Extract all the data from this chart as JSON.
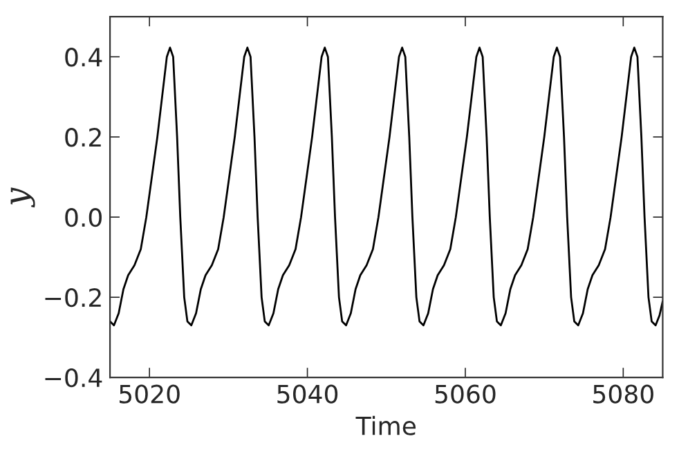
{
  "chart_data": {
    "type": "line",
    "xlabel": "Time",
    "ylabel": "y",
    "xlim": [
      5015,
      5085
    ],
    "ylim": [
      -0.4,
      0.5
    ],
    "xticks": [
      5020,
      5040,
      5060,
      5080
    ],
    "yticks": [
      {
        "value": -0.4,
        "label": "−0.4"
      },
      {
        "value": -0.2,
        "label": "−0.2"
      },
      {
        "value": 0,
        "label": "0.0"
      },
      0.2,
      0.4
    ],
    "grid": false,
    "marker": "none",
    "line_style": "solid",
    "series": [
      {
        "color": "#000000",
        "x": [
          5015.0,
          5015.5,
          5016.1,
          5016.7,
          5017.3,
          5018.1,
          5018.9,
          5019.6,
          5020.3,
          5021.0,
          5021.6,
          5022.2,
          5022.6,
          5023.0,
          5023.5,
          5023.9,
          5024.4,
          5024.8,
          5025.3,
          5025.9,
          5026.5,
          5027.1,
          5027.9,
          5028.7,
          5029.4,
          5030.1,
          5030.8,
          5031.4,
          5032.0,
          5032.4,
          5032.8,
          5033.3,
          5033.7,
          5034.2,
          5034.6,
          5035.1,
          5035.7,
          5036.3,
          5036.9,
          5037.7,
          5038.5,
          5039.2,
          5039.9,
          5040.6,
          5041.2,
          5041.8,
          5042.2,
          5042.6,
          5043.1,
          5043.5,
          5044.0,
          5044.4,
          5044.9,
          5045.5,
          5046.1,
          5046.7,
          5047.5,
          5048.3,
          5049.0,
          5049.7,
          5050.4,
          5051.0,
          5051.6,
          5052.0,
          5052.4,
          5052.9,
          5053.3,
          5053.8,
          5054.2,
          5054.7,
          5055.3,
          5055.9,
          5056.5,
          5057.3,
          5058.1,
          5058.8,
          5059.5,
          5060.2,
          5060.8,
          5061.4,
          5061.8,
          5062.2,
          5062.7,
          5063.1,
          5063.6,
          5064.0,
          5064.5,
          5065.1,
          5065.7,
          5066.3,
          5067.1,
          5067.9,
          5068.6,
          5069.3,
          5070.0,
          5070.6,
          5071.2,
          5071.6,
          5072.0,
          5072.5,
          5072.9,
          5073.4,
          5073.8,
          5074.3,
          5074.9,
          5075.5,
          5076.1,
          5076.9,
          5077.7,
          5078.4,
          5079.1,
          5079.8,
          5080.4,
          5081.0,
          5081.4,
          5081.8,
          5082.3,
          5082.7,
          5083.2,
          5083.6,
          5084.1,
          5084.6,
          5085.0
        ],
        "values": [
          -0.26,
          -0.27,
          -0.24,
          -0.18,
          -0.145,
          -0.12,
          -0.08,
          0.0,
          0.1,
          0.2,
          0.3,
          0.4,
          0.423,
          0.4,
          0.2,
          0.0,
          -0.2,
          -0.26,
          -0.27,
          -0.24,
          -0.18,
          -0.145,
          -0.12,
          -0.08,
          0.0,
          0.1,
          0.2,
          0.3,
          0.4,
          0.423,
          0.4,
          0.2,
          0.0,
          -0.2,
          -0.26,
          -0.27,
          -0.24,
          -0.18,
          -0.145,
          -0.12,
          -0.08,
          0.0,
          0.1,
          0.2,
          0.3,
          0.4,
          0.423,
          0.4,
          0.2,
          0.0,
          -0.2,
          -0.26,
          -0.27,
          -0.24,
          -0.18,
          -0.145,
          -0.12,
          -0.08,
          0.0,
          0.1,
          0.2,
          0.3,
          0.4,
          0.423,
          0.4,
          0.2,
          0.0,
          -0.2,
          -0.26,
          -0.27,
          -0.24,
          -0.18,
          -0.145,
          -0.12,
          -0.08,
          0.0,
          0.1,
          0.2,
          0.3,
          0.4,
          0.423,
          0.4,
          0.2,
          0.0,
          -0.2,
          -0.26,
          -0.27,
          -0.24,
          -0.18,
          -0.145,
          -0.12,
          -0.08,
          0.0,
          0.1,
          0.2,
          0.3,
          0.4,
          0.423,
          0.4,
          0.2,
          0.0,
          -0.2,
          -0.26,
          -0.27,
          -0.24,
          -0.18,
          -0.145,
          -0.12,
          -0.08,
          0.0,
          0.1,
          0.2,
          0.3,
          0.4,
          0.423,
          0.4,
          0.2,
          0.0,
          -0.2,
          -0.26,
          -0.27,
          -0.245,
          -0.21
        ]
      }
    ]
  }
}
